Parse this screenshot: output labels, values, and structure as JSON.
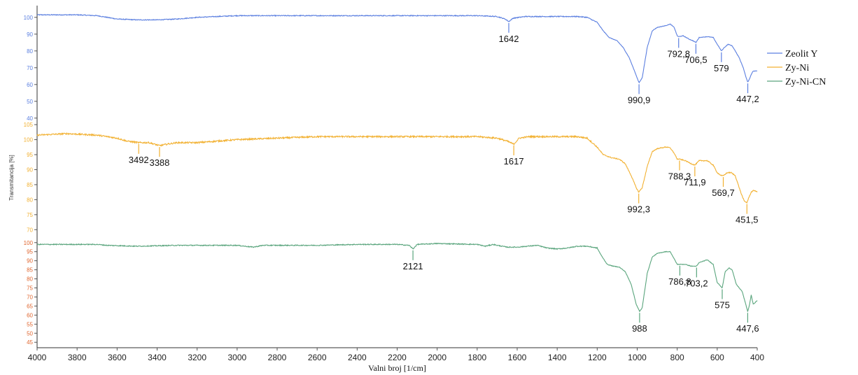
{
  "chart_data": {
    "type": "line",
    "xlabel": "Valni broj [1/cm]",
    "ylabel": "Transmitancija [%]",
    "x_ticks": [
      4000,
      3800,
      3600,
      3400,
      3200,
      3000,
      2800,
      2600,
      2400,
      2200,
      2000,
      1800,
      1600,
      1400,
      1200,
      1000,
      800,
      600,
      400
    ],
    "xlim": [
      4000,
      400
    ],
    "x_reversed": true,
    "legend_position": "right",
    "series": [
      {
        "name": "Zeolit Y",
        "color": "#5b7fe0",
        "ylim": [
          37,
          107
        ],
        "y_ticks": [
          40,
          50,
          60,
          70,
          80,
          90,
          100
        ],
        "points": [
          [
            4000,
            101.5
          ],
          [
            3800,
            101.5
          ],
          [
            3700,
            101
          ],
          [
            3600,
            99
          ],
          [
            3500,
            98.5
          ],
          [
            3400,
            98.5
          ],
          [
            3300,
            99
          ],
          [
            3200,
            100
          ],
          [
            3000,
            101
          ],
          [
            2800,
            101
          ],
          [
            2600,
            101
          ],
          [
            2400,
            101
          ],
          [
            2200,
            101
          ],
          [
            2000,
            101
          ],
          [
            1800,
            101
          ],
          [
            1700,
            100.5
          ],
          [
            1660,
            99
          ],
          [
            1642,
            97.5
          ],
          [
            1620,
            99.5
          ],
          [
            1560,
            100.5
          ],
          [
            1400,
            100.5
          ],
          [
            1300,
            100.5
          ],
          [
            1250,
            100
          ],
          [
            1200,
            97
          ],
          [
            1170,
            92
          ],
          [
            1140,
            88
          ],
          [
            1100,
            86
          ],
          [
            1070,
            82
          ],
          [
            1040,
            76
          ],
          [
            1010,
            67
          ],
          [
            990.9,
            61
          ],
          [
            975,
            64
          ],
          [
            950,
            82
          ],
          [
            925,
            92
          ],
          [
            900,
            94
          ],
          [
            860,
            95
          ],
          [
            835,
            96
          ],
          [
            815,
            94
          ],
          [
            800,
            89
          ],
          [
            792.8,
            88.5
          ],
          [
            770,
            89
          ],
          [
            740,
            87
          ],
          [
            720,
            86
          ],
          [
            706.5,
            85
          ],
          [
            690,
            88
          ],
          [
            650,
            88.5
          ],
          [
            620,
            88
          ],
          [
            600,
            84
          ],
          [
            579,
            80
          ],
          [
            565,
            82
          ],
          [
            545,
            84
          ],
          [
            525,
            83
          ],
          [
            505,
            79
          ],
          [
            490,
            76
          ],
          [
            470,
            70
          ],
          [
            455,
            64
          ],
          [
            447.2,
            61.5
          ],
          [
            440,
            63
          ],
          [
            430,
            66
          ],
          [
            420,
            68
          ],
          [
            410,
            68
          ],
          [
            400,
            68
          ]
        ],
        "annotations": [
          {
            "x": 1642,
            "label": "1642"
          },
          {
            "x": 990.9,
            "label": "990,9"
          },
          {
            "x": 792.8,
            "label": "792,8"
          },
          {
            "x": 706.5,
            "label": "706,5"
          },
          {
            "x": 579,
            "label": "579"
          },
          {
            "x": 447.2,
            "label": "447,2"
          }
        ]
      },
      {
        "name": "Zy-Ni",
        "color": "#f2b132",
        "ylim": [
          67.5,
          105.5
        ],
        "y_ticks": [
          70,
          75,
          80,
          85,
          90,
          95,
          100,
          105
        ],
        "points": [
          [
            4000,
            101.5
          ],
          [
            3850,
            102
          ],
          [
            3700,
            101.5
          ],
          [
            3600,
            100.5
          ],
          [
            3550,
            99.5
          ],
          [
            3492,
            99
          ],
          [
            3440,
            99
          ],
          [
            3388,
            98
          ],
          [
            3350,
            98.5
          ],
          [
            3300,
            99
          ],
          [
            3200,
            99
          ],
          [
            3000,
            100
          ],
          [
            2800,
            100.5
          ],
          [
            2600,
            101
          ],
          [
            2400,
            101
          ],
          [
            2200,
            101
          ],
          [
            2000,
            101
          ],
          [
            1800,
            101
          ],
          [
            1700,
            100.5
          ],
          [
            1650,
            99.5
          ],
          [
            1617,
            98.5
          ],
          [
            1590,
            100.5
          ],
          [
            1540,
            101
          ],
          [
            1400,
            101
          ],
          [
            1300,
            101
          ],
          [
            1250,
            100.5
          ],
          [
            1200,
            97.5
          ],
          [
            1170,
            95
          ],
          [
            1130,
            94
          ],
          [
            1090,
            93.5
          ],
          [
            1060,
            92
          ],
          [
            1030,
            88
          ],
          [
            1005,
            84
          ],
          [
            992.3,
            82.5
          ],
          [
            975,
            84
          ],
          [
            950,
            91
          ],
          [
            925,
            96
          ],
          [
            900,
            97
          ],
          [
            860,
            97.5
          ],
          [
            840,
            97.5
          ],
          [
            815,
            95.5
          ],
          [
            800,
            93.5
          ],
          [
            788.3,
            93.5
          ],
          [
            760,
            93
          ],
          [
            730,
            92
          ],
          [
            711.9,
            91.5
          ],
          [
            690,
            93
          ],
          [
            650,
            93
          ],
          [
            620,
            91.5
          ],
          [
            600,
            89
          ],
          [
            580,
            88
          ],
          [
            569.7,
            88
          ],
          [
            550,
            89
          ],
          [
            530,
            89
          ],
          [
            510,
            88
          ],
          [
            495,
            85
          ],
          [
            480,
            82
          ],
          [
            465,
            79.5
          ],
          [
            451.5,
            79
          ],
          [
            440,
            81
          ],
          [
            430,
            82.5
          ],
          [
            420,
            83
          ],
          [
            410,
            83
          ],
          [
            400,
            82.5
          ]
        ],
        "annotations": [
          {
            "x": 3492,
            "label": "3492"
          },
          {
            "x": 3388,
            "label": "3388"
          },
          {
            "x": 1617,
            "label": "1617"
          },
          {
            "x": 992.3,
            "label": "992,3"
          },
          {
            "x": 788.3,
            "label": "788,3"
          },
          {
            "x": 711.9,
            "label": "711,9"
          },
          {
            "x": 569.7,
            "label": "569,7"
          },
          {
            "x": 451.5,
            "label": "451,5"
          }
        ]
      },
      {
        "name": "Zy-Ni-CN",
        "color": "#5aa57d",
        "ylim": [
          42,
          103
        ],
        "y_ticks": [
          45,
          50,
          55,
          60,
          65,
          70,
          75,
          80,
          85,
          90,
          95,
          100
        ],
        "points": [
          [
            4000,
            99
          ],
          [
            3800,
            99
          ],
          [
            3700,
            99
          ],
          [
            3650,
            98.5
          ],
          [
            3500,
            98
          ],
          [
            3300,
            98.5
          ],
          [
            3000,
            98.5
          ],
          [
            2920,
            97.5
          ],
          [
            2870,
            98.5
          ],
          [
            2600,
            98.5
          ],
          [
            2400,
            99
          ],
          [
            2200,
            99
          ],
          [
            2140,
            98.5
          ],
          [
            2121,
            96.5
          ],
          [
            2100,
            99
          ],
          [
            2000,
            99.5
          ],
          [
            1800,
            99
          ],
          [
            1760,
            98
          ],
          [
            1720,
            99
          ],
          [
            1700,
            98.5
          ],
          [
            1650,
            97.5
          ],
          [
            1600,
            97.5
          ],
          [
            1500,
            98.5
          ],
          [
            1450,
            97
          ],
          [
            1400,
            96.5
          ],
          [
            1350,
            97
          ],
          [
            1300,
            98
          ],
          [
            1250,
            98
          ],
          [
            1200,
            97
          ],
          [
            1180,
            93
          ],
          [
            1150,
            88
          ],
          [
            1120,
            87
          ],
          [
            1090,
            86.5
          ],
          [
            1060,
            84
          ],
          [
            1030,
            77
          ],
          [
            1005,
            66
          ],
          [
            988,
            62
          ],
          [
            975,
            64
          ],
          [
            950,
            83
          ],
          [
            925,
            92
          ],
          [
            900,
            94
          ],
          [
            860,
            95
          ],
          [
            835,
            95
          ],
          [
            815,
            91
          ],
          [
            800,
            88
          ],
          [
            786.8,
            88
          ],
          [
            760,
            88
          ],
          [
            730,
            87
          ],
          [
            703.2,
            87
          ],
          [
            690,
            89
          ],
          [
            650,
            90.5
          ],
          [
            620,
            88
          ],
          [
            600,
            78
          ],
          [
            575,
            75
          ],
          [
            560,
            84
          ],
          [
            540,
            86
          ],
          [
            525,
            85
          ],
          [
            505,
            77
          ],
          [
            490,
            75
          ],
          [
            475,
            73
          ],
          [
            460,
            67
          ],
          [
            447.6,
            62
          ],
          [
            440,
            65
          ],
          [
            430,
            71
          ],
          [
            420,
            66
          ],
          [
            410,
            67
          ],
          [
            400,
            68
          ]
        ],
        "annotations": [
          {
            "x": 2121,
            "label": "2121"
          },
          {
            "x": 988,
            "label": "988"
          },
          {
            "x": 786.8,
            "label": "786,8"
          },
          {
            "x": 703.2,
            "label": "703,2"
          },
          {
            "x": 575,
            "label": "575"
          },
          {
            "x": 447.6,
            "label": "447,6"
          }
        ]
      }
    ],
    "y_tick_colors": [
      "#5b7fe0",
      "#f2b132",
      "#e0662f"
    ]
  }
}
